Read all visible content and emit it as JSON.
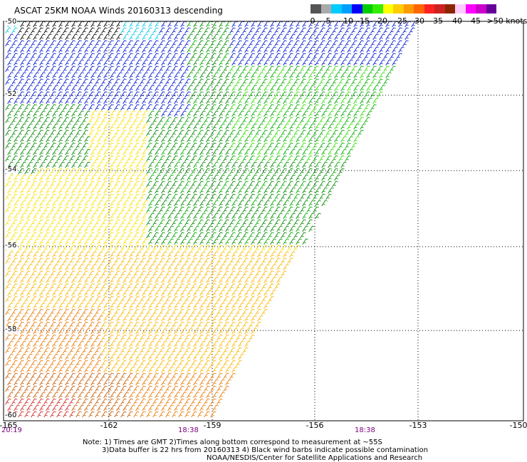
{
  "title": "ASCAT 25KM NOAA Winds 20160313 descending",
  "legend": {
    "colors": [
      "#555555",
      "#aaaaaa",
      "#00ccff",
      "#00a0ff",
      "#0000ff",
      "#00cc00",
      "#33ee00",
      "#ffff00",
      "#ffcc00",
      "#ff9900",
      "#ff6600",
      "#ff2222",
      "#cc2222",
      "#8b2500",
      "#ffccff",
      "#ff00ff",
      "#cc00cc",
      "#660099"
    ],
    "labels": [
      "0",
      "5",
      "10",
      "15",
      "20",
      "25",
      "30",
      "35",
      "40",
      "45",
      ">50 knots"
    ]
  },
  "axes": {
    "lat_labels": [
      "-50",
      "-52",
      "-54",
      "-56",
      "-58",
      "-60"
    ],
    "lon_labels": [
      "-165",
      "-162",
      "-159",
      "-156",
      "-153",
      "-150"
    ],
    "times": [
      "20:19",
      "18:38",
      "18:38"
    ]
  },
  "notes": {
    "line1": "Note: 1) Times are GMT 2)Times along bottom correspond to measurement at ~55S",
    "line2": "3)Data buffer is 22 hrs from 20160313 4) Black wind barbs indicate possible contamination",
    "line3": "NOAA/NESDIS/Center for Satellite Applications and Research"
  },
  "wind_colors": {
    "contaminated": "#000000",
    "cyan": "#00c8e8",
    "blue": "#0018d0",
    "green": "#00aa00",
    "lightgreen": "#33dd00",
    "darkgreen": "#008800",
    "yellow": "#f8e000",
    "amber": "#f8b800",
    "orange": "#e87800",
    "darkorange": "#c85a00",
    "red": "#d02020"
  }
}
